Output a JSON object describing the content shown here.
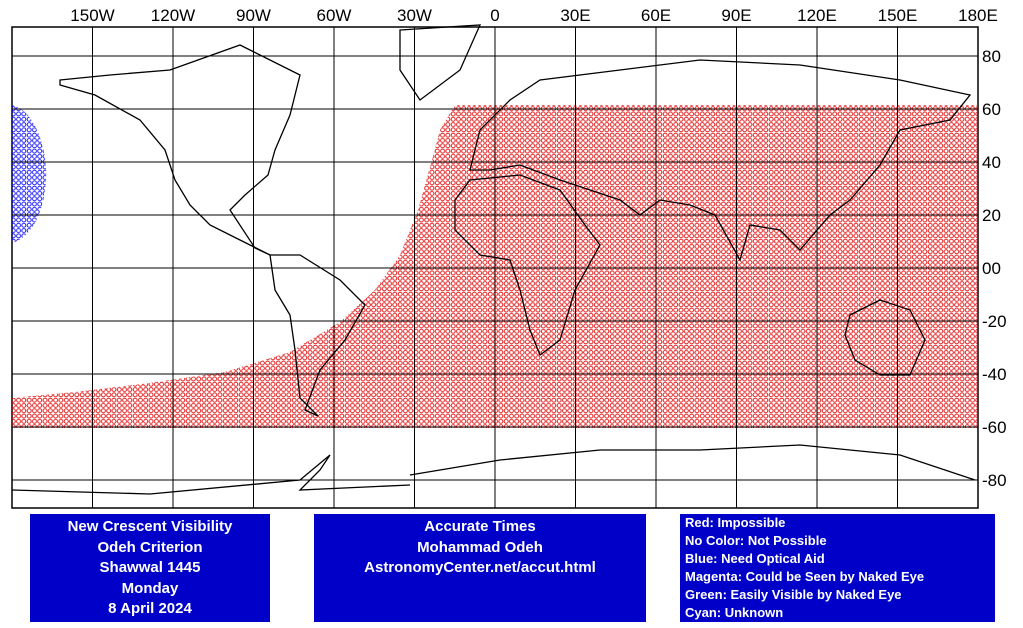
{
  "map": {
    "longitude_labels": [
      "150W",
      "120W",
      "90W",
      "60W",
      "30W",
      "0",
      "30E",
      "60E",
      "90E",
      "120E",
      "150E",
      "180E"
    ],
    "latitude_labels": [
      "80",
      "60",
      "40",
      "20",
      "00",
      "-20",
      "-40",
      "-60",
      "-80"
    ],
    "info_box": {
      "lines": [
        "New Crescent Visibility",
        "Odeh Criterion",
        "Shawwal 1445",
        "Monday",
        "8 April 2024"
      ]
    },
    "credits": {
      "lines": [
        "Accurate Times",
        "Mohammad Odeh",
        "AstronomyCenter.net/accut.html"
      ]
    },
    "legend": {
      "lines": [
        "Red: Impossible",
        "No Color: Not Possible",
        "Blue: Need Optical Aid",
        "Magenta: Could be Seen by Naked Eye",
        "Green: Easily Visible by Naked Eye",
        "Cyan: Unknown"
      ]
    }
  }
}
